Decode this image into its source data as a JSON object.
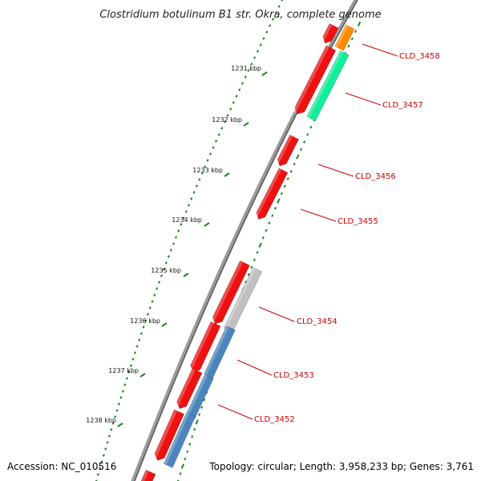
{
  "title": "Clostridium botulinum B1 str. Okra, complete genome",
  "footer": {
    "accession": "Accession: NC_010516",
    "topology": "Topology: circular; Length: 3,958,233 bp; Genes: 3,761"
  },
  "ruler_labels": [
    {
      "id": "kbp-1231",
      "text": "1231 kbp"
    },
    {
      "id": "kbp-1232",
      "text": "1232 kbp"
    },
    {
      "id": "kbp-1233",
      "text": "1233 kbp"
    },
    {
      "id": "kbp-1234",
      "text": "1234 kbp"
    },
    {
      "id": "kbp-1235",
      "text": "1235 kbp"
    },
    {
      "id": "kbp-1236",
      "text": "1236 kbp"
    },
    {
      "id": "kbp-1237",
      "text": "1237 kbp"
    },
    {
      "id": "kbp-1238",
      "text": "1238 kbp"
    }
  ],
  "gene_labels": [
    {
      "id": "CLD_3458",
      "text": "CLD_3458"
    },
    {
      "id": "CLD_3457",
      "text": "CLD_3457"
    },
    {
      "id": "CLD_3456",
      "text": "CLD_3456"
    },
    {
      "id": "CLD_3455",
      "text": "CLD_3455"
    },
    {
      "id": "CLD_3454",
      "text": "CLD_3454"
    },
    {
      "id": "CLD_3453",
      "text": "CLD_3453"
    },
    {
      "id": "CLD_3452",
      "text": "CLD_3452"
    }
  ],
  "colors": {
    "forward_gene": "#ee1111",
    "cds_orange": "#ff8c00",
    "cds_green": "#11ee99",
    "cds_gray": "#c0c0c0",
    "cds_blue": "#4a86bd",
    "backbone": "#777777",
    "ruler_ticks": "#1a8a1a",
    "label_text": "#cc0000"
  }
}
